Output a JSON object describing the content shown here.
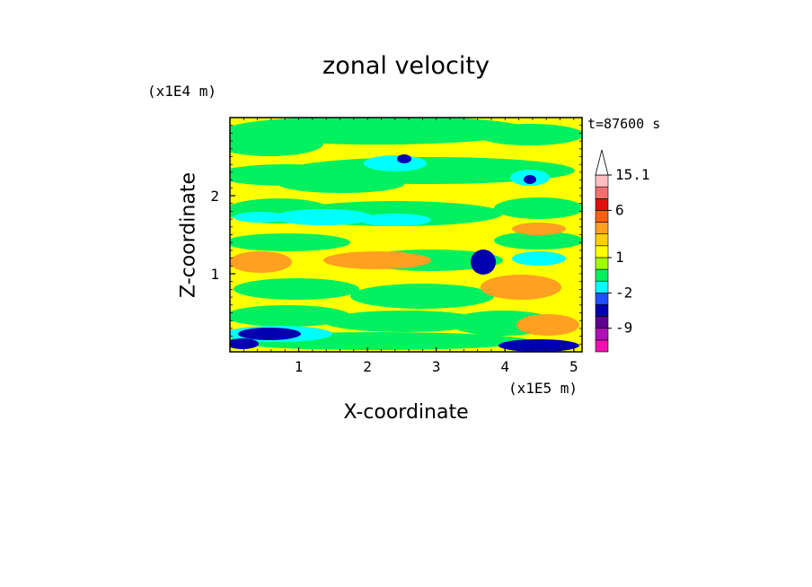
{
  "chart_data": {
    "type": "heatmap",
    "title": "zonal velocity",
    "xlabel": "X-coordinate",
    "ylabel": "Z-coordinate",
    "x_multiplier": "(x1E5 m)",
    "y_multiplier": "(x1E4 m)",
    "time_label": "t=87600 s",
    "xlim": [
      0,
      5.12
    ],
    "ylim": [
      0,
      3.0
    ],
    "x_ticks": [
      1,
      2,
      3,
      4,
      5
    ],
    "y_ticks": [
      1,
      2
    ],
    "colorbar": {
      "levels": [
        -15,
        -12,
        -9,
        -6,
        -4,
        -2,
        -1,
        0,
        1,
        2,
        3,
        4,
        6,
        9,
        12,
        15.1
      ],
      "colors": [
        "#f010b0",
        "#b010b8",
        "#600090",
        "#0000b0",
        "#2050ff",
        "#00ffff",
        "#00f060",
        "#a0ff00",
        "#ffff00",
        "#ffd000",
        "#ffa020",
        "#ff6010",
        "#e01010",
        "#f07070",
        "#ffbfbf"
      ],
      "tick_labels": [
        "15.1",
        "6",
        "1",
        "-2",
        "-9"
      ],
      "tick_values": [
        15.1,
        6,
        1,
        -2,
        -9
      ],
      "extend_max": true
    },
    "grid": false
  },
  "colors": {
    "default_fill": "#ffff00",
    "green": "#00f060",
    "cyan": "#00ffff",
    "orange": "#ffa020",
    "blue": "#0000b0"
  }
}
